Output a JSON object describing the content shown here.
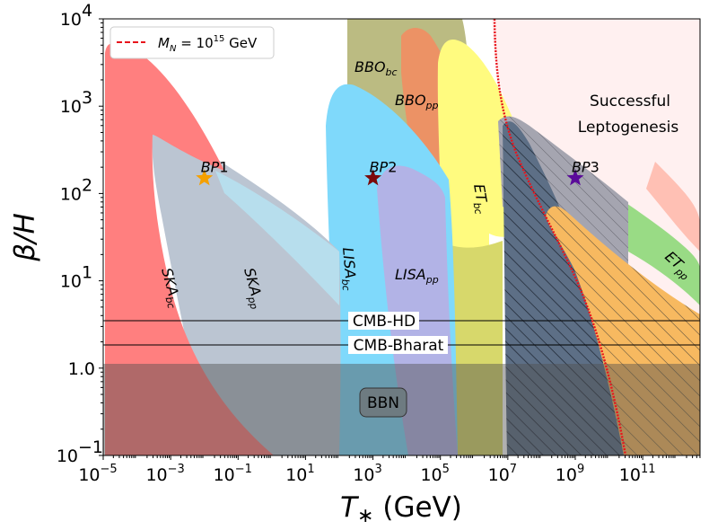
{
  "chart_data": {
    "type": "region-plot",
    "title": "",
    "xlabel": "T* (GeV)",
    "ylabel": "β/H",
    "x_scale": "log",
    "y_scale": "log",
    "xlim_log10": [
      -5,
      12.7
    ],
    "ylim_log10": [
      -1,
      4
    ],
    "x_ticks": [
      {
        "exp": -5,
        "label": "10"
      },
      {
        "exp": -3,
        "label": "10"
      },
      {
        "exp": -1,
        "label": "10"
      },
      {
        "exp": 1,
        "label": "10"
      },
      {
        "exp": 3,
        "label": "10"
      },
      {
        "exp": 5,
        "label": "10"
      },
      {
        "exp": 7,
        "label": "10"
      },
      {
        "exp": 9,
        "label": "10"
      },
      {
        "exp": 11,
        "label": "10"
      }
    ],
    "y_ticks": [
      {
        "exp": -1,
        "base": "10",
        "sup": "−1"
      },
      {
        "exp": 0,
        "base": "1.0",
        "sup": ""
      },
      {
        "exp": 1,
        "base": "10",
        "sup": "1"
      },
      {
        "exp": 2,
        "base": "10",
        "sup": "2"
      },
      {
        "exp": 3,
        "base": "10",
        "sup": "3"
      },
      {
        "exp": 4,
        "base": "10",
        "sup": "4"
      }
    ],
    "legend": {
      "position": "top-left",
      "entry_main": "M",
      "entry_sub": "N",
      "entry_rest": " = 10",
      "entry_sup": "15",
      "entry_unit": " GeV",
      "color": "#e8141c"
    },
    "regions": [
      {
        "name": "SKA_bc",
        "label_main": "SKA",
        "label_sub": "bc",
        "color": "#ff7f7f"
      },
      {
        "name": "SKA_pp",
        "label_main": "SKA",
        "label_sub": "pp",
        "color": "#bbc5d2"
      },
      {
        "name": "LISA_bc",
        "label_main": "LISA",
        "label_sub": "bc",
        "color": "#7fd9fb"
      },
      {
        "name": "LISA_pp",
        "label_main": "LISA",
        "label_sub": "pp",
        "color": "#b2b3e6"
      },
      {
        "name": "BBO_bc",
        "label_main": "BBO",
        "label_sub": "bc",
        "color": "#bbbb82"
      },
      {
        "name": "BBO_pp",
        "label_main": "BBO",
        "label_sub": "pp",
        "color": "#ec9265"
      },
      {
        "name": "ET_bc",
        "label_main": "ET",
        "label_sub": "bc",
        "color": "#fffb7f"
      },
      {
        "name": "ET_pp",
        "label_main": "ET",
        "label_sub": "pp",
        "color": "#99db85"
      },
      {
        "name": "Leptogenesis",
        "label_line1": "Successful",
        "label_line2": "Leptogenesis",
        "color": "#fff0f0"
      }
    ],
    "benchmarks": [
      {
        "name": "BP1",
        "label_main": "BP",
        "label_num": "1",
        "log10_T": -2.0,
        "beta_over_H": 150,
        "color": "#f5a000"
      },
      {
        "name": "BP2",
        "label_main": "BP",
        "label_num": "2",
        "log10_T": 3.0,
        "beta_over_H": 150,
        "color": "#7c0a0a"
      },
      {
        "name": "BP3",
        "label_main": "BP",
        "label_num": "3",
        "log10_T": 9.0,
        "beta_over_H": 150,
        "color": "#5a0a9a"
      }
    ],
    "horizontal_lines": [
      {
        "label": "CMB-HD",
        "value": 3.3
      },
      {
        "label": "CMB-Bharat",
        "value": 1.75
      }
    ],
    "bbn": {
      "label": "BBN",
      "upper_value": 1.0
    }
  }
}
